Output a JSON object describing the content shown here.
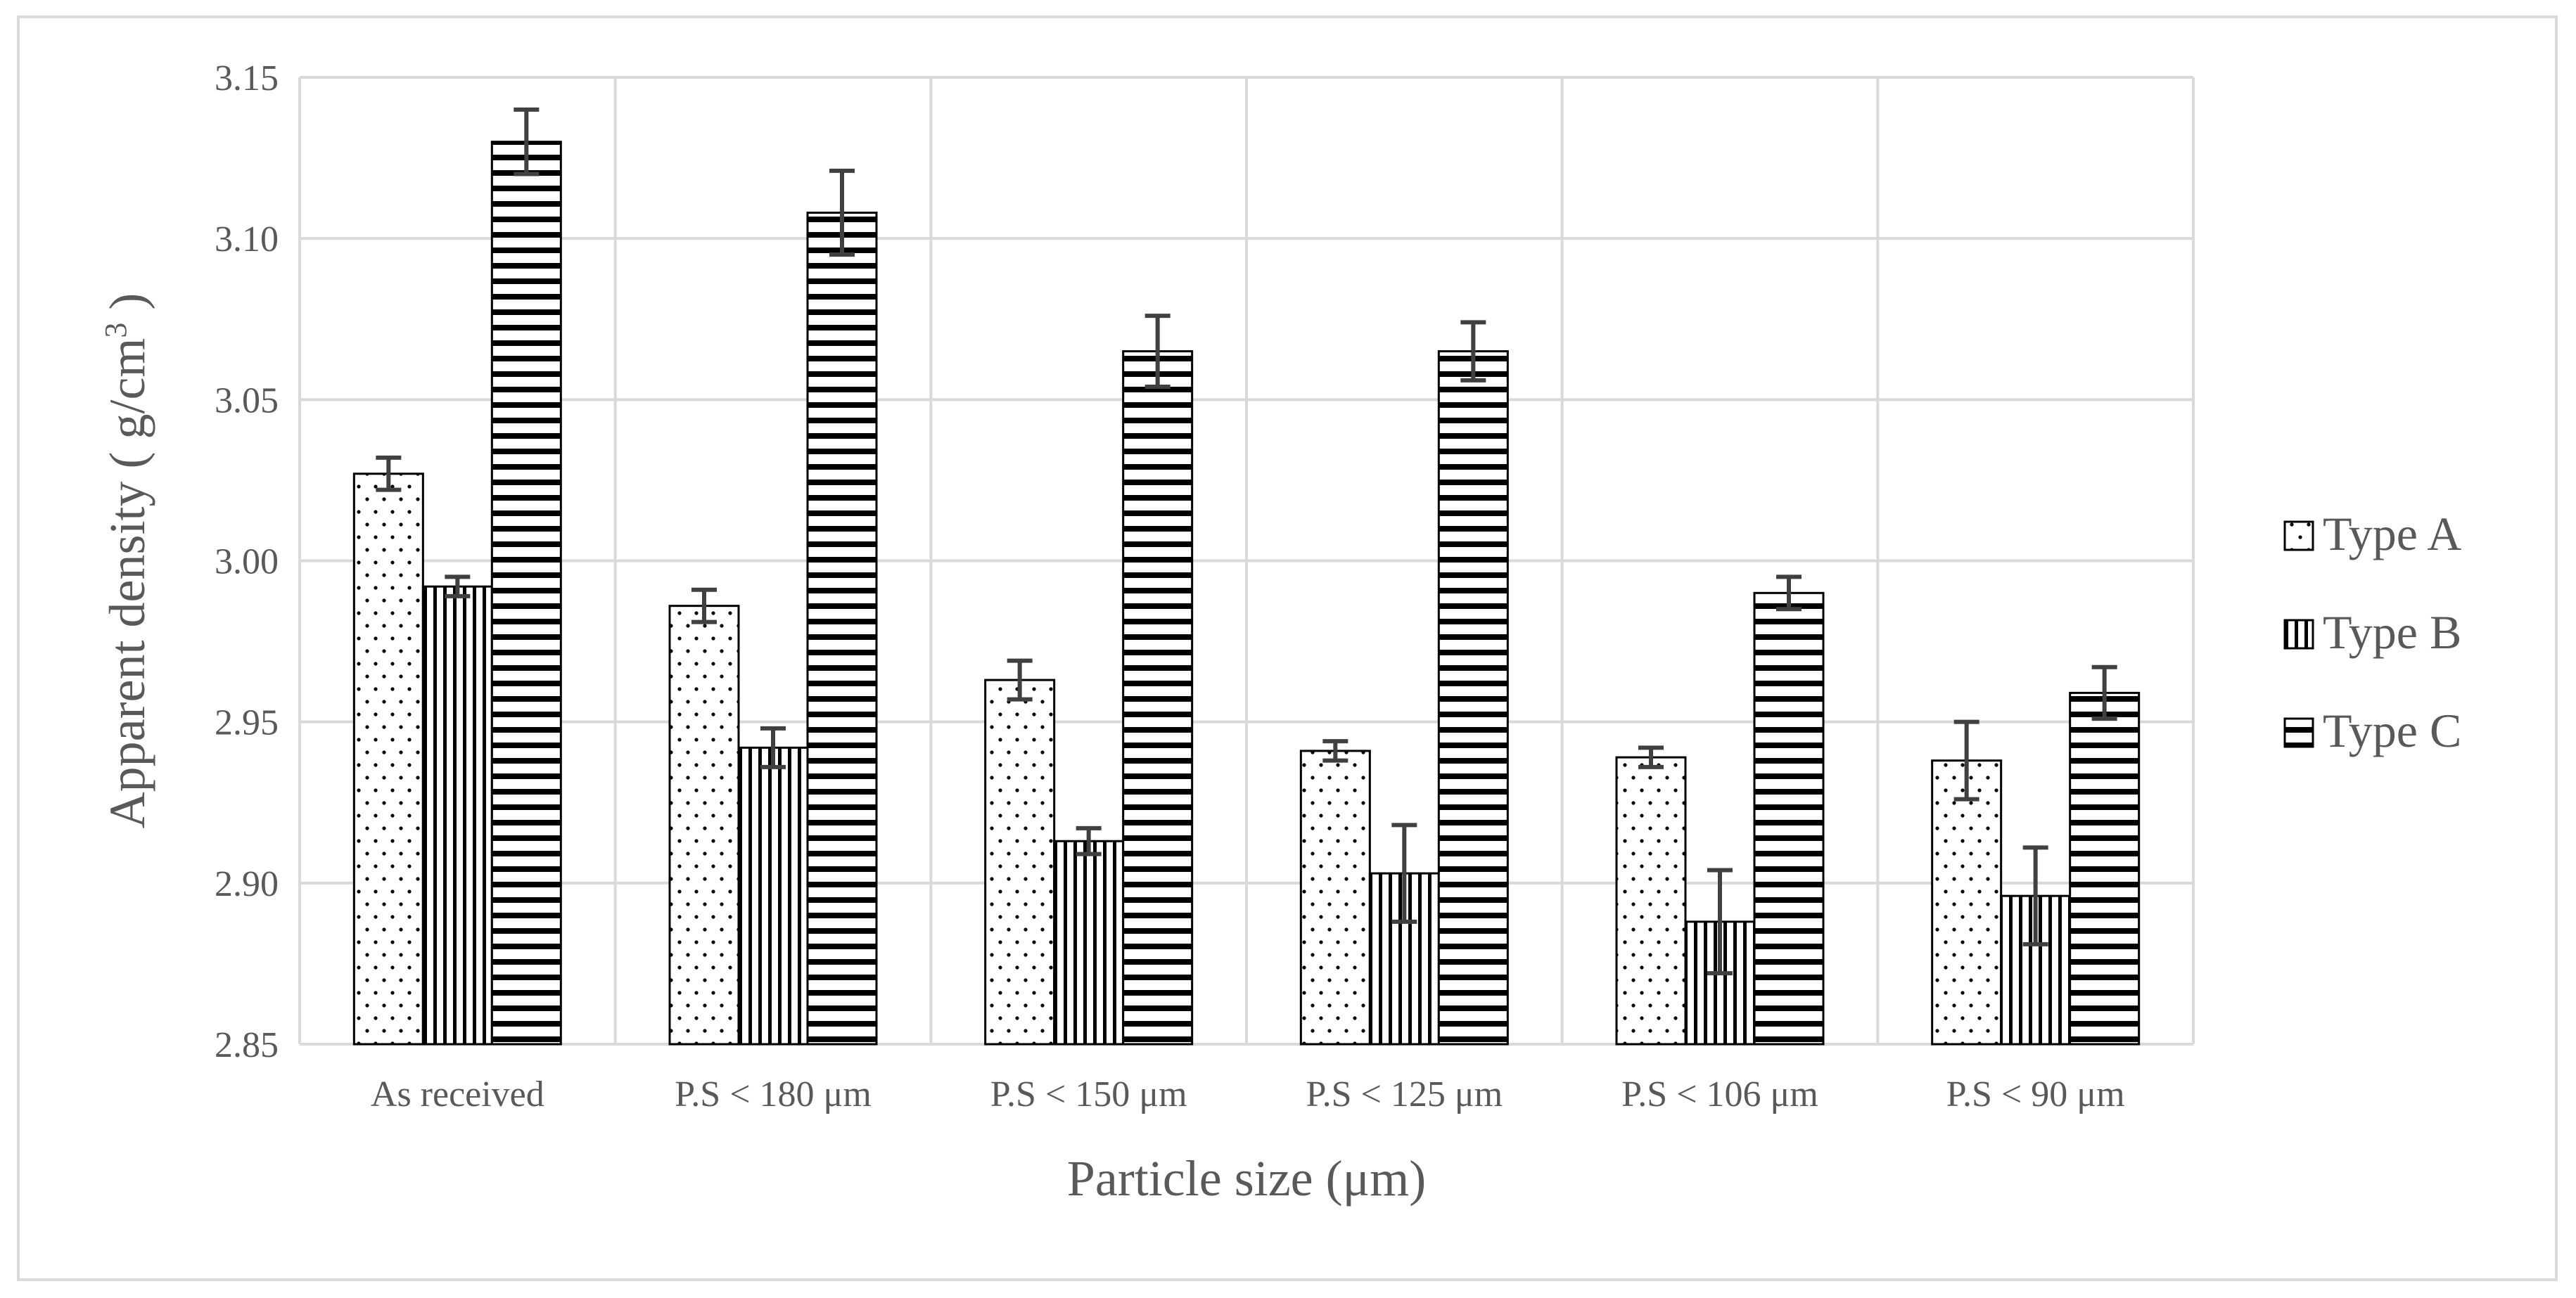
{
  "chart_data": {
    "type": "bar",
    "title": "",
    "xlabel": "Particle size  (μm)",
    "ylabel_main": "Apparent density ( g/cm",
    "ylabel_sup": "3",
    "ylabel_end": " )",
    "ylim": [
      2.85,
      3.15
    ],
    "yticks": [
      "2.85",
      "2.90",
      "2.95",
      "3.00",
      "3.05",
      "3.10",
      "3.15"
    ],
    "ytick_values": [
      2.85,
      2.9,
      2.95,
      3.0,
      3.05,
      3.1,
      3.15
    ],
    "grid": true,
    "legend_position": "right",
    "categories": [
      "As received",
      "P.S < 180 μm",
      "P.S < 150 μm",
      "P.S < 125 μm",
      "P.S < 106 μm",
      "P.S < 90 μm"
    ],
    "series": [
      {
        "name": "Type A",
        "pattern": "dots",
        "values": [
          3.027,
          2.986,
          2.963,
          2.941,
          2.939,
          2.938
        ],
        "errors": [
          0.005,
          0.005,
          0.006,
          0.003,
          0.003,
          0.012
        ]
      },
      {
        "name": "Type B",
        "pattern": "vertical",
        "values": [
          2.992,
          2.942,
          2.913,
          2.903,
          2.888,
          2.896
        ],
        "errors": [
          0.003,
          0.006,
          0.004,
          0.015,
          0.016,
          0.015
        ]
      },
      {
        "name": "Type C",
        "pattern": "horizontal",
        "values": [
          3.13,
          3.108,
          3.065,
          3.065,
          2.99,
          2.959
        ],
        "errors": [
          0.01,
          0.013,
          0.011,
          0.009,
          0.005,
          0.008
        ]
      }
    ]
  },
  "colors": {
    "bar_stroke": "#000000",
    "grid": "#d9d9d9",
    "error_bar": "#404040",
    "text": "#595959"
  }
}
